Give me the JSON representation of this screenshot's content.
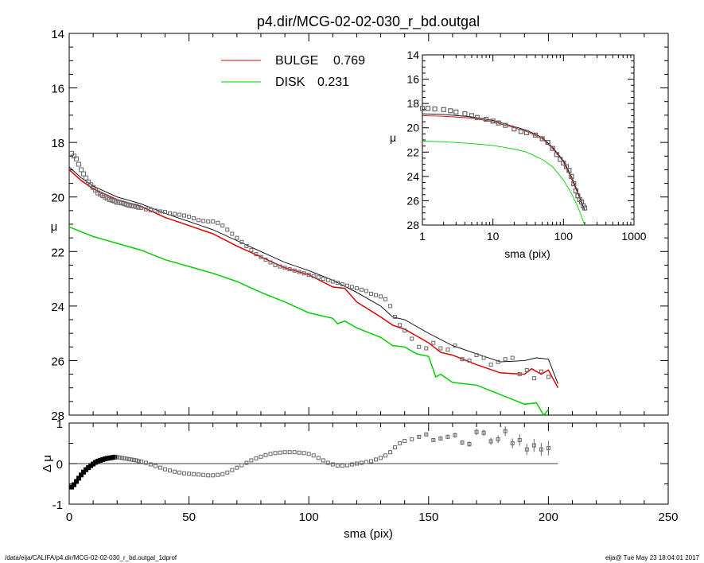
{
  "title": "p4.dir/MCG-02-02-030_r_bd.outgal",
  "footer": {
    "left": "/data/eija/CALIFA/p4.dir/MCG-02-02-030_r_bd.outgal_1dprof",
    "right": "eija@  Tue May 23 18:04:01 2017"
  },
  "colors": {
    "bulge": "#e00000",
    "disk": "#00d000",
    "total": "#000000",
    "data": "#666666"
  },
  "chart_data": [
    {
      "type": "line",
      "name": "main",
      "xlabel": "sma (pix)",
      "ylabel": "μ",
      "xlim": [
        0,
        250
      ],
      "ylim": [
        28,
        14
      ],
      "x_ticks": [
        "0",
        "50",
        "100",
        "150",
        "200",
        "250"
      ],
      "y_ticks": [
        "14",
        "16",
        "18",
        "20",
        "22",
        "24",
        "26",
        "28"
      ],
      "legend": [
        {
          "label": "BULGE",
          "value": "0.769",
          "color": "#e00000"
        },
        {
          "label": "DISK",
          "value": "0.231",
          "color": "#00d000"
        }
      ],
      "legend_position": "top-left",
      "series": [
        {
          "key": "bulge",
          "x": [
            0,
            5,
            10,
            20,
            30,
            40,
            50,
            60,
            70,
            80,
            90,
            100,
            110,
            115,
            120,
            130,
            135,
            140,
            150,
            155,
            160,
            170,
            180,
            190,
            193,
            197,
            200,
            204
          ],
          "y": [
            19.0,
            19.4,
            19.7,
            20.1,
            20.35,
            20.75,
            21.05,
            21.35,
            21.8,
            22.2,
            22.6,
            22.85,
            23.3,
            23.35,
            23.85,
            24.4,
            24.7,
            24.85,
            25.35,
            25.7,
            25.8,
            26.15,
            26.45,
            26.5,
            26.3,
            26.5,
            26.35,
            27.0
          ]
        },
        {
          "key": "disk",
          "x": [
            0,
            10,
            20,
            30,
            40,
            50,
            60,
            70,
            80,
            90,
            100,
            110,
            112,
            115,
            120,
            130,
            135,
            140,
            145,
            150,
            153,
            155,
            160,
            170,
            180,
            190,
            195,
            198,
            200
          ],
          "y": [
            21.1,
            21.45,
            21.7,
            21.95,
            22.3,
            22.55,
            22.8,
            23.1,
            23.5,
            23.85,
            24.25,
            24.45,
            24.65,
            24.55,
            24.8,
            25.15,
            25.45,
            25.5,
            25.75,
            25.85,
            26.6,
            26.5,
            26.8,
            26.9,
            27.25,
            27.6,
            27.55,
            28.0,
            27.8
          ]
        },
        {
          "key": "total",
          "x": [
            0,
            5,
            10,
            20,
            30,
            40,
            50,
            60,
            70,
            80,
            90,
            100,
            110,
            120,
            130,
            135,
            140,
            150,
            160,
            170,
            180,
            190,
            195,
            200,
            204
          ],
          "y": [
            18.9,
            19.3,
            19.6,
            20.0,
            20.25,
            20.6,
            20.9,
            21.2,
            21.6,
            22.0,
            22.4,
            22.7,
            23.05,
            23.5,
            24.0,
            24.4,
            24.5,
            25.0,
            25.45,
            25.75,
            26.05,
            26.0,
            25.9,
            25.95,
            26.85
          ]
        }
      ],
      "points": {
        "x": [
          1,
          2,
          3,
          4,
          5,
          6,
          7,
          8,
          9,
          10,
          11,
          12,
          13,
          14,
          15,
          16,
          17,
          18,
          19,
          20,
          21,
          22,
          23,
          24,
          25,
          26,
          27,
          28,
          29,
          30,
          32,
          34,
          36,
          38,
          40,
          42,
          44,
          46,
          48,
          50,
          52,
          54,
          56,
          58,
          60,
          62,
          64,
          66,
          68,
          70,
          72,
          74,
          76,
          78,
          80,
          82,
          84,
          86,
          88,
          90,
          92,
          94,
          96,
          98,
          100,
          102,
          104,
          106,
          108,
          110,
          112,
          114,
          116,
          118,
          120,
          122,
          124,
          126,
          128,
          130,
          132,
          134,
          136,
          138,
          140,
          143,
          146,
          149,
          152,
          155,
          158,
          161,
          164,
          167,
          170,
          173,
          176,
          179,
          182,
          185,
          188,
          191,
          194,
          197,
          200
        ],
        "y": [
          18.4,
          18.5,
          18.6,
          18.8,
          19.0,
          19.15,
          19.3,
          19.45,
          19.55,
          19.65,
          19.75,
          19.85,
          19.9,
          19.95,
          20.0,
          20.05,
          20.1,
          20.12,
          20.15,
          20.2,
          20.2,
          20.22,
          20.25,
          20.28,
          20.3,
          20.32,
          20.33,
          20.35,
          20.38,
          20.4,
          20.45,
          20.48,
          20.5,
          20.53,
          20.55,
          20.6,
          20.62,
          20.65,
          20.68,
          20.72,
          20.78,
          20.85,
          20.88,
          20.9,
          20.9,
          20.95,
          21.05,
          21.2,
          21.35,
          21.5,
          21.65,
          21.8,
          21.95,
          22.1,
          22.2,
          22.3,
          22.4,
          22.5,
          22.55,
          22.6,
          22.65,
          22.7,
          22.75,
          22.8,
          22.85,
          22.9,
          22.95,
          23.0,
          23.05,
          23.1,
          23.15,
          23.2,
          23.25,
          23.3,
          23.35,
          23.4,
          23.45,
          23.55,
          23.6,
          23.65,
          23.75,
          24.0,
          24.4,
          24.7,
          24.9,
          25.2,
          25.5,
          25.55,
          25.35,
          25.55,
          25.6,
          25.45,
          25.95,
          26.0,
          25.8,
          25.9,
          26.15,
          26.05,
          25.95,
          25.9,
          26.5,
          26.35,
          26.65,
          26.4,
          26.6
        ]
      }
    },
    {
      "type": "scatter",
      "name": "residual",
      "xlabel": "sma (pix)",
      "ylabel": "Δ μ",
      "xlim": [
        0,
        250
      ],
      "ylim": [
        -1,
        1
      ],
      "y_ticks": [
        "1",
        "0",
        "-1"
      ],
      "zero_line": true,
      "points": {
        "x": [
          1,
          2,
          3,
          4,
          5,
          6,
          7,
          8,
          9,
          10,
          11,
          12,
          13,
          14,
          15,
          16,
          17,
          18,
          19,
          20,
          21,
          22,
          23,
          24,
          25,
          26,
          27,
          28,
          29,
          30,
          32,
          34,
          36,
          38,
          40,
          42,
          44,
          46,
          48,
          50,
          52,
          54,
          56,
          58,
          60,
          62,
          64,
          66,
          68,
          70,
          72,
          74,
          76,
          78,
          80,
          82,
          84,
          86,
          88,
          90,
          92,
          94,
          96,
          98,
          100,
          102,
          104,
          106,
          108,
          110,
          112,
          114,
          116,
          118,
          120,
          122,
          124,
          126,
          128,
          130,
          132,
          134,
          136,
          138,
          140,
          143,
          146,
          149,
          152,
          155,
          158,
          161,
          164,
          167,
          170,
          173,
          176,
          179,
          182,
          185,
          188,
          191,
          194,
          197,
          200
        ],
        "y": [
          -0.58,
          -0.52,
          -0.44,
          -0.36,
          -0.28,
          -0.21,
          -0.15,
          -0.1,
          -0.05,
          -0.01,
          0.03,
          0.06,
          0.08,
          0.1,
          0.12,
          0.13,
          0.14,
          0.15,
          0.16,
          0.16,
          0.15,
          0.14,
          0.13,
          0.12,
          0.11,
          0.1,
          0.09,
          0.08,
          0.06,
          0.05,
          0.02,
          -0.02,
          -0.06,
          -0.1,
          -0.14,
          -0.17,
          -0.2,
          -0.22,
          -0.24,
          -0.25,
          -0.26,
          -0.27,
          -0.28,
          -0.29,
          -0.29,
          -0.28,
          -0.26,
          -0.22,
          -0.16,
          -0.1,
          -0.04,
          0.02,
          0.08,
          0.13,
          0.17,
          0.21,
          0.24,
          0.26,
          0.27,
          0.28,
          0.28,
          0.28,
          0.27,
          0.26,
          0.24,
          0.2,
          0.14,
          0.08,
          0.02,
          -0.02,
          -0.05,
          -0.05,
          -0.04,
          -0.02,
          0.0,
          0.02,
          0.04,
          0.06,
          0.1,
          0.14,
          0.2,
          0.28,
          0.4,
          0.5,
          0.56,
          0.6,
          0.66,
          0.72,
          0.58,
          0.62,
          0.66,
          0.7,
          0.52,
          0.48,
          0.78,
          0.76,
          0.55,
          0.6,
          0.8,
          0.5,
          0.58,
          0.35,
          0.45,
          0.35,
          0.38
        ],
        "err": [
          0.02,
          0.02,
          0.02,
          0.02,
          0.02,
          0.02,
          0.02,
          0.02,
          0.02,
          0.02,
          0.02,
          0.02,
          0.02,
          0.02,
          0.02,
          0.02,
          0.02,
          0.02,
          0.02,
          0.02,
          0.02,
          0.02,
          0.02,
          0.02,
          0.02,
          0.02,
          0.02,
          0.02,
          0.02,
          0.02,
          0.02,
          0.02,
          0.02,
          0.02,
          0.02,
          0.02,
          0.02,
          0.02,
          0.02,
          0.02,
          0.02,
          0.02,
          0.02,
          0.02,
          0.02,
          0.02,
          0.02,
          0.02,
          0.02,
          0.02,
          0.02,
          0.02,
          0.02,
          0.02,
          0.02,
          0.02,
          0.02,
          0.02,
          0.02,
          0.02,
          0.02,
          0.02,
          0.02,
          0.02,
          0.02,
          0.02,
          0.02,
          0.02,
          0.02,
          0.02,
          0.02,
          0.02,
          0.02,
          0.02,
          0.02,
          0.02,
          0.02,
          0.02,
          0.02,
          0.02,
          0.02,
          0.02,
          0.02,
          0.03,
          0.03,
          0.03,
          0.04,
          0.04,
          0.04,
          0.05,
          0.05,
          0.06,
          0.06,
          0.07,
          0.08,
          0.08,
          0.09,
          0.1,
          0.12,
          0.12,
          0.14,
          0.14,
          0.16,
          0.16,
          0.18
        ]
      }
    },
    {
      "type": "line",
      "name": "inset",
      "xlabel": "sma (pix)",
      "ylabel": "μ",
      "xscale": "log",
      "xlim": [
        1,
        1000
      ],
      "ylim": [
        28,
        14
      ],
      "x_ticks": [
        "1",
        "10",
        "100",
        "1000"
      ],
      "y_ticks": [
        "14",
        "16",
        "18",
        "20",
        "22",
        "24",
        "26",
        "28"
      ],
      "series": [
        {
          "key": "bulge",
          "x": [
            1,
            2,
            5,
            10,
            20,
            30,
            50,
            70,
            100,
            130,
            160,
            200
          ],
          "y": [
            19.0,
            19.05,
            19.2,
            19.5,
            20.0,
            20.3,
            20.9,
            21.7,
            22.8,
            24.2,
            25.4,
            26.8
          ]
        },
        {
          "key": "disk",
          "x": [
            1,
            2,
            5,
            10,
            20,
            30,
            50,
            70,
            100,
            130,
            160,
            200
          ],
          "y": [
            21.1,
            21.15,
            21.3,
            21.45,
            21.75,
            22.0,
            22.6,
            23.2,
            24.3,
            25.4,
            26.5,
            28.0
          ]
        },
        {
          "key": "total",
          "x": [
            1,
            2,
            5,
            10,
            20,
            30,
            50,
            70,
            100,
            130,
            160,
            200
          ],
          "y": [
            18.85,
            18.9,
            19.1,
            19.4,
            19.9,
            20.2,
            20.8,
            21.6,
            22.7,
            24.0,
            25.3,
            26.8
          ]
        }
      ],
      "points": {
        "x": [
          1,
          1.2,
          1.5,
          2,
          2.5,
          3,
          4,
          5,
          6,
          8,
          10,
          12,
          15,
          20,
          25,
          30,
          40,
          50,
          60,
          70,
          80,
          90,
          100,
          110,
          120,
          130,
          140,
          150,
          160,
          170,
          180,
          190,
          200
        ],
        "y": [
          18.4,
          18.4,
          18.45,
          18.5,
          18.6,
          18.7,
          18.85,
          19.0,
          19.15,
          19.3,
          19.45,
          19.6,
          19.8,
          20.1,
          20.3,
          20.4,
          20.6,
          20.9,
          21.2,
          21.7,
          22.2,
          22.6,
          22.9,
          23.2,
          23.5,
          24.0,
          24.6,
          25.2,
          25.6,
          25.9,
          26.1,
          26.4,
          26.6
        ]
      }
    }
  ]
}
